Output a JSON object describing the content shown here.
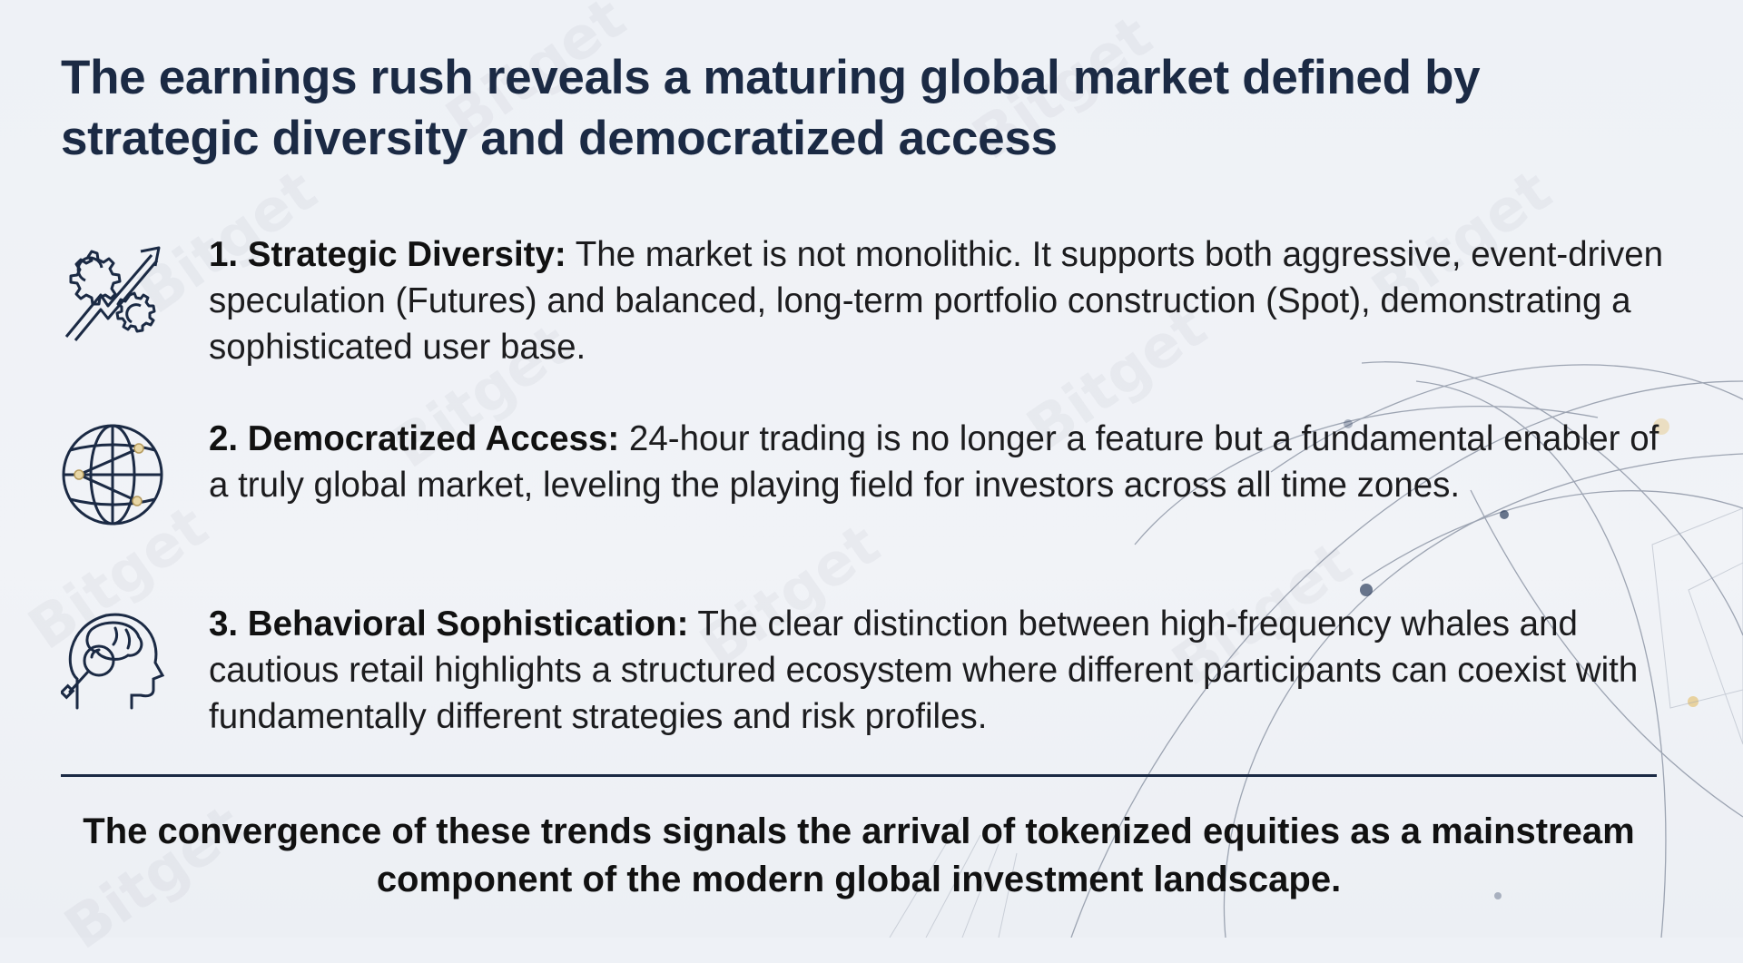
{
  "watermark": "Bitget",
  "title": "The earnings rush reveals a maturing global market defined by strategic diversity and democratized access",
  "items": [
    {
      "icon": "gears-arrow-icon",
      "heading": "1. Strategic Diversity:",
      "body": " The market is not monolithic. It supports both aggressive, event-driven speculation (Futures) and balanced, long-term portfolio construction (Spot), demonstrating a sophisticated user base."
    },
    {
      "icon": "globe-network-icon",
      "heading": "2. Democratized Access:",
      "body": " 24-hour trading is no longer a feature but a fundamental enabler of a truly global market, leveling the playing field for investors across all time zones."
    },
    {
      "icon": "head-brain-magnifier-icon",
      "heading": "3. Behavioral Sophistication:",
      "body": " The clear distinction between high-frequency whales and cautious retail highlights a structured ecosystem where different participants can coexist with fundamentally different strategies and risk profiles."
    }
  ],
  "conclusion": "The convergence of these trends signals the arrival of tokenized equities as a mainstream component of the modern global investment landscape.",
  "colors": {
    "title": "#1b2a44",
    "text": "#1c1c1e",
    "divider": "#1b2a44",
    "accent_gold": "#d8b978"
  }
}
